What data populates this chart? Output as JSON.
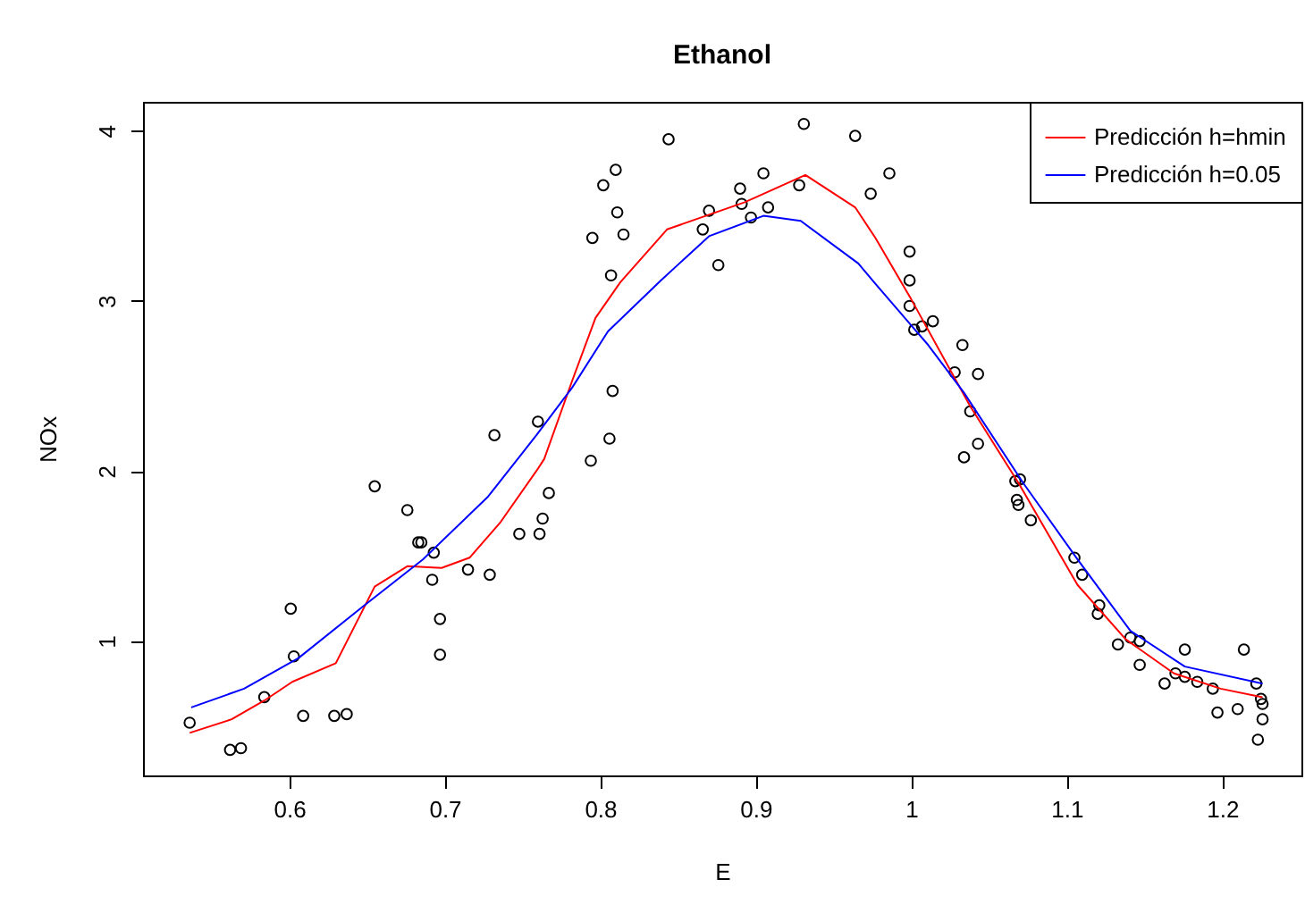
{
  "chart_data": {
    "type": "scatter",
    "title": "Ethanol",
    "xlabel": "E",
    "ylabel": "NOx",
    "xlim": [
      0.506,
      1.251
    ],
    "ylim": [
      0.21,
      4.17
    ],
    "xticks": [
      0.6,
      0.7,
      0.8,
      0.9,
      1.0,
      1.1,
      1.2
    ],
    "yticks": [
      1,
      2,
      3,
      4
    ],
    "grid": false,
    "legend": "top right",
    "series": [
      {
        "marker": "circle",
        "color": "#000000",
        "x": [
          0.536,
          0.562,
          0.569,
          0.584,
          0.601,
          0.603,
          0.609,
          0.629,
          0.637,
          0.655,
          0.676,
          0.683,
          0.685,
          0.693,
          0.692,
          0.697,
          0.697,
          0.715,
          0.729,
          0.732,
          0.748,
          0.761,
          0.76,
          0.763,
          0.767,
          0.794,
          0.795,
          0.802,
          0.806,
          0.808,
          0.81,
          0.811,
          0.815,
          0.807,
          0.844,
          0.87,
          0.866,
          0.876,
          0.89,
          0.891,
          0.897,
          0.905,
          0.908,
          0.928,
          0.931,
          0.964,
          0.974,
          0.986,
          0.999,
          0.999,
          0.999,
          1.002,
          1.007,
          1.014,
          1.033,
          1.028,
          1.043,
          1.038,
          1.043,
          1.034,
          1.067,
          1.07,
          1.068,
          1.069,
          1.077,
          1.105,
          1.11,
          1.121,
          1.12,
          1.133,
          1.141,
          1.147,
          1.147,
          1.176,
          1.163,
          1.17,
          1.176,
          1.184,
          1.194,
          1.197,
          1.21,
          1.214,
          1.222,
          1.225,
          1.226,
          1.226,
          1.223
        ],
        "values": [
          0.52,
          0.36,
          0.37,
          0.67,
          1.19,
          0.91,
          0.56,
          0.56,
          0.57,
          1.91,
          1.77,
          1.58,
          1.58,
          1.52,
          1.36,
          1.13,
          0.92,
          1.42,
          1.39,
          2.21,
          1.63,
          1.63,
          2.29,
          1.72,
          1.87,
          2.06,
          3.37,
          3.68,
          2.19,
          2.47,
          3.77,
          3.52,
          3.39,
          3.15,
          3.95,
          3.53,
          3.42,
          3.21,
          3.66,
          3.57,
          3.49,
          3.75,
          3.55,
          3.68,
          4.04,
          3.97,
          3.63,
          3.75,
          3.29,
          3.12,
          2.97,
          2.83,
          2.85,
          2.88,
          2.74,
          2.58,
          2.57,
          2.35,
          2.16,
          2.08,
          1.94,
          1.95,
          1.83,
          1.8,
          1.71,
          1.49,
          1.39,
          1.21,
          1.16,
          0.98,
          1.02,
          1.0,
          0.86,
          0.95,
          0.75,
          0.81,
          0.79,
          0.76,
          0.72,
          0.58,
          0.6,
          0.95,
          0.75,
          0.66,
          0.63,
          0.54,
          0.42
        ]
      },
      {
        "type": "line",
        "name": "Predicción h=hmin",
        "color": "#ff0000",
        "x": [
          0.536,
          0.563,
          0.584,
          0.602,
          0.63,
          0.655,
          0.676,
          0.698,
          0.716,
          0.736,
          0.759,
          0.764,
          0.782,
          0.797,
          0.813,
          0.843,
          0.893,
          0.932,
          0.964,
          0.977,
          1.0,
          1.038,
          1.069,
          1.107,
          1.138,
          1.169,
          1.199,
          1.226
        ],
        "values": [
          0.46,
          0.54,
          0.65,
          0.76,
          0.87,
          1.32,
          1.44,
          1.43,
          1.49,
          1.7,
          2.0,
          2.07,
          2.53,
          2.9,
          3.11,
          3.42,
          3.58,
          3.74,
          3.55,
          3.37,
          3.01,
          2.38,
          1.93,
          1.33,
          1.01,
          0.81,
          0.72,
          0.67
        ]
      },
      {
        "type": "line",
        "name": "Predicción h=0.05",
        "color": "#0000ff",
        "x": [
          0.537,
          0.571,
          0.606,
          0.647,
          0.686,
          0.728,
          0.759,
          0.782,
          0.805,
          0.839,
          0.87,
          0.905,
          0.929,
          0.966,
          0.977,
          1.011,
          1.034,
          1.072,
          1.107,
          1.141,
          1.176,
          1.226
        ],
        "values": [
          0.61,
          0.72,
          0.9,
          1.2,
          1.48,
          1.85,
          2.21,
          2.49,
          2.82,
          3.12,
          3.38,
          3.5,
          3.47,
          3.22,
          3.1,
          2.74,
          2.46,
          1.93,
          1.48,
          1.06,
          0.85,
          0.75
        ]
      }
    ]
  }
}
